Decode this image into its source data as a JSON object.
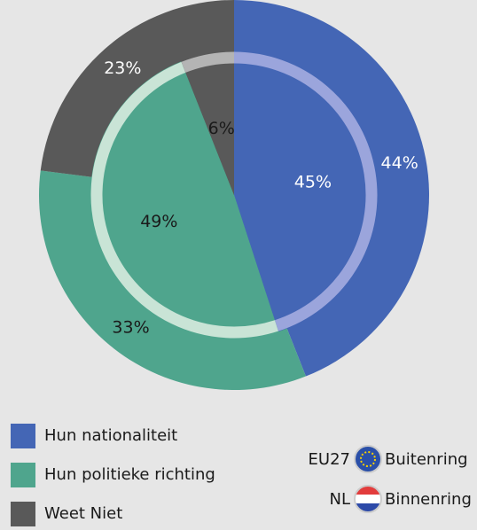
{
  "chart_data": {
    "type": "pie",
    "categories": [
      "Hun nationaliteit",
      "Hun politieke richting",
      "Weet Niet"
    ],
    "colors": [
      "#4466b5",
      "#4fa58d",
      "#595959"
    ],
    "ring_colors": [
      "#9ba5dc",
      "#c9e4d6",
      "#b4b4b4"
    ],
    "series": [
      {
        "name": "EU27",
        "ring": "Buitenring",
        "values": [
          44,
          33,
          23
        ],
        "label_colors": [
          "#ffffff",
          "#1a1a1a",
          "#ffffff"
        ]
      },
      {
        "name": "NL",
        "ring": "Binnenring",
        "values": [
          45,
          49,
          6
        ],
        "label_colors": [
          "#ffffff",
          "#1a1a1a",
          "#1a1a1a"
        ]
      }
    ]
  }
}
